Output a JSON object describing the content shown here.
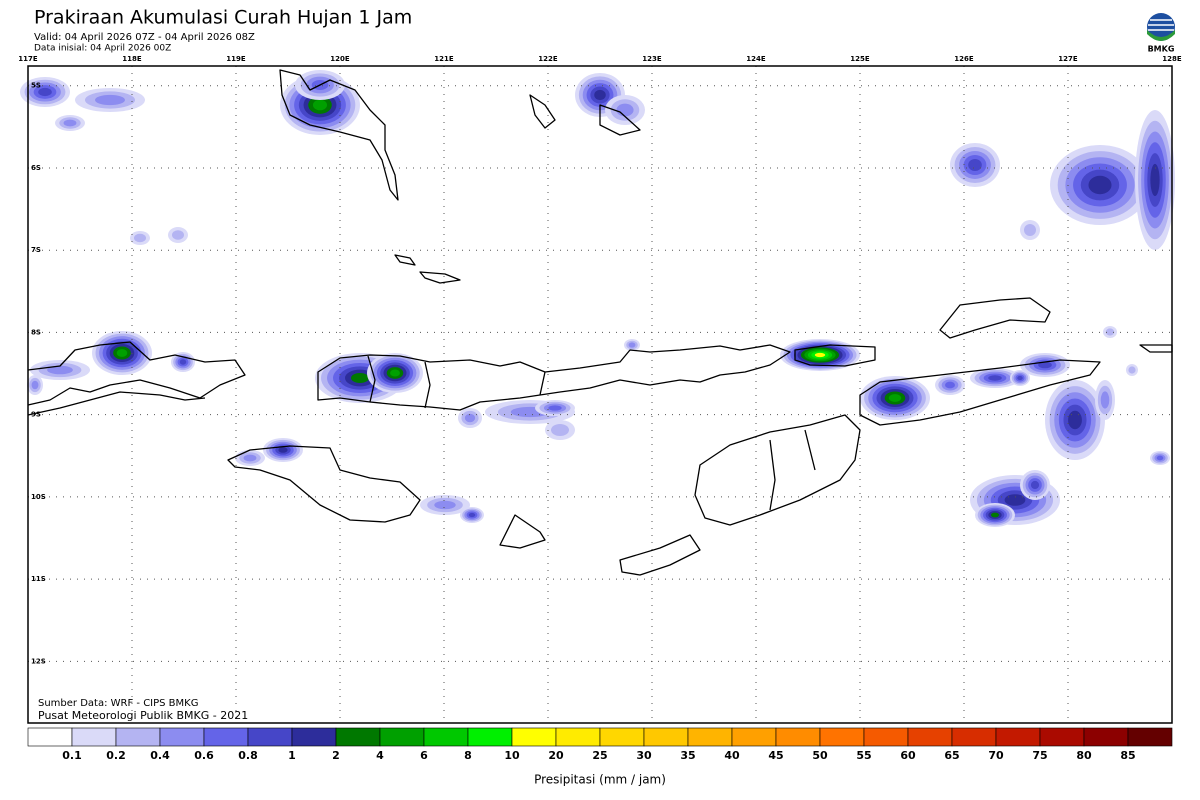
{
  "header": {
    "title": "Prakiraan Akumulasi Curah Hujan 1 Jam",
    "valid": "Valid: 04 April 2026 07Z - 04 April 2026 08Z",
    "initial": "Data inisial: 04 April 2026 00Z",
    "logo": "BMKG"
  },
  "map": {
    "xlim": [
      117,
      128
    ],
    "ylim": [
      -12.75,
      -4.76
    ],
    "lon_ticks": [
      {
        "value": 117,
        "label": "117E"
      },
      {
        "value": 118,
        "label": "118E"
      },
      {
        "value": 119,
        "label": "119E"
      },
      {
        "value": 120,
        "label": "120E"
      },
      {
        "value": 121,
        "label": "121E"
      },
      {
        "value": 122,
        "label": "122E"
      },
      {
        "value": 123,
        "label": "123E"
      },
      {
        "value": 124,
        "label": "124E"
      },
      {
        "value": 125,
        "label": "125E"
      },
      {
        "value": 126,
        "label": "126E"
      },
      {
        "value": 127,
        "label": "127E"
      },
      {
        "value": 128,
        "label": "128E"
      }
    ],
    "lat_ticks": [
      {
        "value": -5,
        "label": "5S"
      },
      {
        "value": -6,
        "label": "6S"
      },
      {
        "value": -7,
        "label": "7S"
      },
      {
        "value": -8,
        "label": "8S"
      },
      {
        "value": -9,
        "label": "9S"
      },
      {
        "value": -10,
        "label": "10S"
      },
      {
        "value": -11,
        "label": "11S"
      },
      {
        "value": -12,
        "label": "12S"
      }
    ],
    "grid": true,
    "source": "Sumber Data: WRF - CIPS BMKG",
    "credit": "Pusat Meteorologi Publik BMKG - 2021"
  },
  "colorbar": {
    "label": "Presipitasi (mm / jam)",
    "ticks": [
      0.1,
      0.2,
      0.4,
      0.6,
      0.8,
      1,
      2,
      4,
      6,
      8,
      10,
      20,
      25,
      30,
      35,
      40,
      45,
      50,
      55,
      60,
      65,
      70,
      75,
      80,
      85
    ],
    "colors": [
      "#ffffff",
      "#dadaf8",
      "#b4b4f2",
      "#8c8cf0",
      "#6464e8",
      "#4646c8",
      "#2d2d9b",
      "#007800",
      "#00a000",
      "#00c800",
      "#00f000",
      "#ffff00",
      "#ffeb00",
      "#ffd700",
      "#ffc800",
      "#ffb400",
      "#ffa000",
      "#ff8c00",
      "#ff7300",
      "#f55a00",
      "#e64100",
      "#d72d00",
      "#c31900",
      "#aa0a00",
      "#8c0000",
      "#640000",
      "#280000"
    ]
  }
}
